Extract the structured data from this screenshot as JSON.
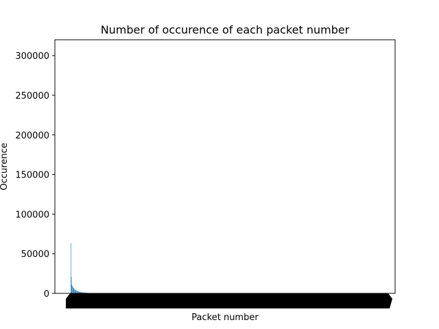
{
  "chart_data": {
    "type": "bar",
    "title": "Number of occurence of each packet number",
    "xlabel": "Packet number",
    "ylabel": "Occurence",
    "ylim": [
      0,
      320000
    ],
    "yticks": [
      0,
      50000,
      100000,
      150000,
      200000,
      250000,
      300000
    ],
    "grid": false,
    "bar_color": "#1f77b4",
    "categories_note_count": 600,
    "values": [
      63500,
      21000,
      11000,
      9500,
      8000,
      7000,
      6200,
      5400,
      4800,
      4300,
      3900,
      3500,
      3200,
      2900,
      2600,
      2400,
      2200,
      2000,
      1800,
      1700,
      1550,
      1400,
      1300,
      1200,
      1100,
      1000,
      930,
      860,
      800,
      740,
      690,
      640,
      600,
      560,
      520,
      480,
      450,
      420,
      390,
      360,
      340,
      320,
      300,
      280,
      260,
      240,
      220,
      200,
      185,
      170,
      155,
      140,
      130,
      120,
      110,
      100,
      90,
      80,
      70,
      60
    ]
  }
}
